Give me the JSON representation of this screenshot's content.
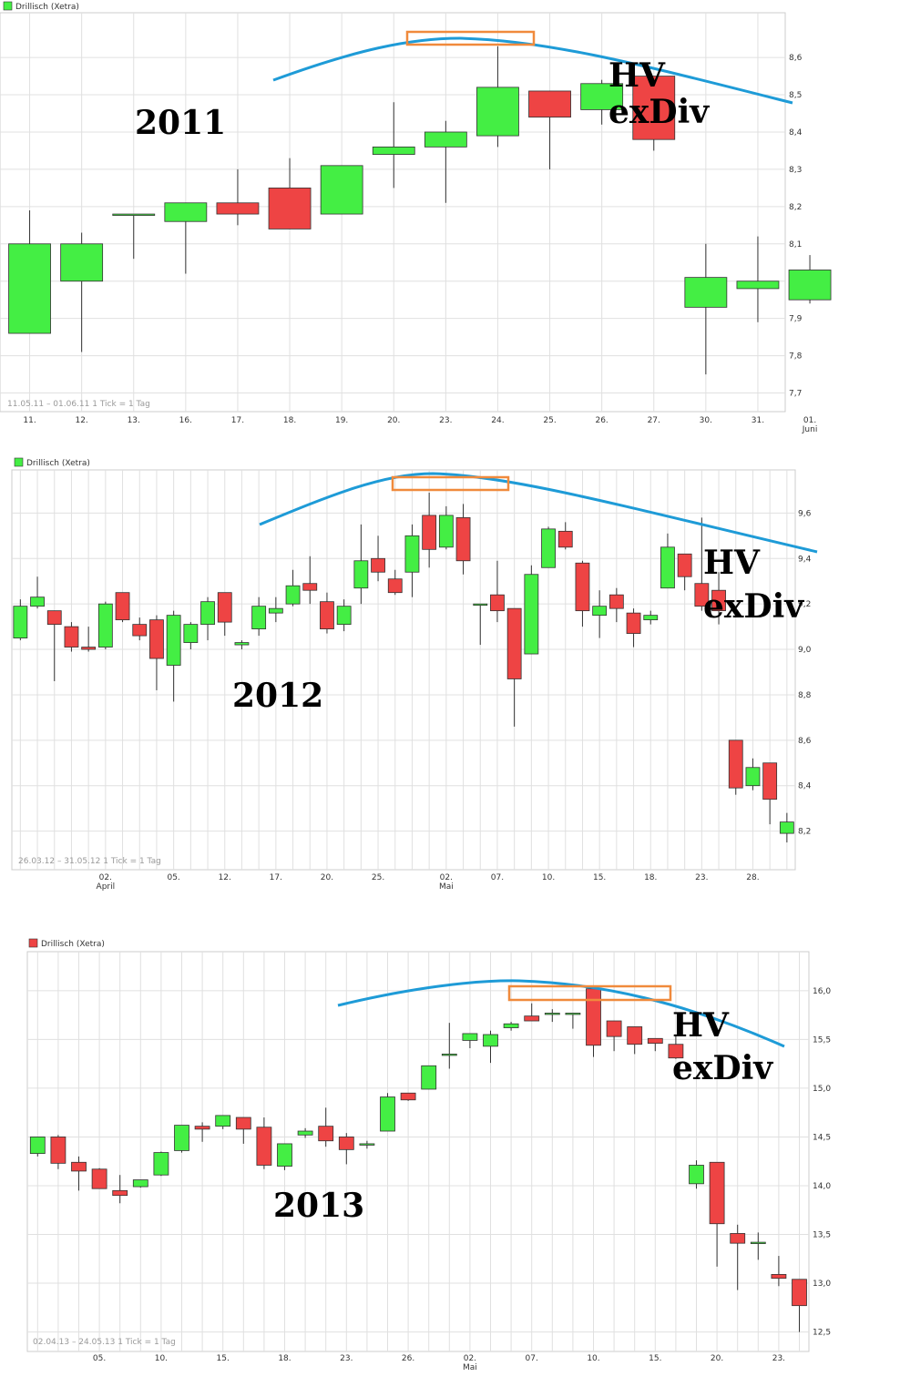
{
  "colors": {
    "up": "#44ee44",
    "down": "#ee4444",
    "trend": "#1e9bd7",
    "highlight": "#f08a3c",
    "grid": "#e0e0e0"
  },
  "chart_data": [
    {
      "type": "candlestick",
      "legend": "Drillisch (Xetra)",
      "legend_color": "#44ee44",
      "info": "11.05.11 – 01.06.11   1 Tick = 1 Tag",
      "year_label": "2011",
      "annotation": [
        "HV",
        "exDiv"
      ],
      "ylim": [
        7.65,
        8.72
      ],
      "yticks": [
        "8,6",
        "8,5",
        "8,4",
        "8,3",
        "8,2",
        "8,1",
        "8,0",
        "7,9",
        "7,8",
        "7,7"
      ],
      "ytick_values": [
        8.6,
        8.5,
        8.4,
        8.3,
        8.2,
        8.1,
        8.0,
        7.9,
        7.8,
        7.7
      ],
      "xticks": [
        "11.",
        "12.",
        "13.",
        "16.",
        "17.",
        "18.",
        "19.",
        "20.",
        "23.",
        "24.",
        "25.",
        "26.",
        "27.",
        "30.",
        "31.",
        "01."
      ],
      "xsub": {
        "index": 15,
        "label": "Juni"
      },
      "candles": [
        {
          "o": 7.86,
          "h": 8.19,
          "l": 7.86,
          "c": 8.1
        },
        {
          "o": 8.0,
          "h": 8.13,
          "l": 7.81,
          "c": 8.1
        },
        {
          "o": 8.18,
          "h": 8.18,
          "l": 8.06,
          "c": 8.18
        },
        {
          "o": 8.16,
          "h": 8.21,
          "l": 8.02,
          "c": 8.21
        },
        {
          "o": 8.21,
          "h": 8.3,
          "l": 8.15,
          "c": 8.18
        },
        {
          "o": 8.25,
          "h": 8.33,
          "l": 8.14,
          "c": 8.14
        },
        {
          "o": 8.18,
          "h": 8.31,
          "l": 8.18,
          "c": 8.31
        },
        {
          "o": 8.34,
          "h": 8.48,
          "l": 8.25,
          "c": 8.36
        },
        {
          "o": 8.36,
          "h": 8.43,
          "l": 8.21,
          "c": 8.4
        },
        {
          "o": 8.39,
          "h": 8.63,
          "l": 8.36,
          "c": 8.52
        },
        {
          "o": 8.51,
          "h": 8.51,
          "l": 8.3,
          "c": 8.44
        },
        {
          "o": 8.46,
          "h": 8.54,
          "l": 8.42,
          "c": 8.53
        },
        {
          "o": 8.55,
          "h": 8.55,
          "l": 8.35,
          "c": 8.38
        },
        {
          "o": 7.93,
          "h": 8.1,
          "l": 7.75,
          "c": 8.01
        },
        {
          "o": 7.98,
          "h": 8.12,
          "l": 7.89,
          "c": 8.0
        },
        {
          "o": 7.95,
          "h": 8.07,
          "l": 7.94,
          "c": 8.03
        }
      ]
    },
    {
      "type": "candlestick",
      "legend": "Drillisch (Xetra)",
      "legend_color": "#44ee44",
      "info": "26.03.12 – 31.05.12   1 Tick = 1 Tag",
      "year_label": "2012",
      "annotation": [
        "HV",
        "exDiv"
      ],
      "ylim": [
        8.03,
        9.79
      ],
      "yticks": [
        "9,6",
        "9,4",
        "9,2",
        "9,0",
        "8,8",
        "8,6",
        "8,4",
        "8,2"
      ],
      "ytick_values": [
        9.6,
        9.4,
        9.2,
        9.0,
        8.8,
        8.6,
        8.4,
        8.2
      ],
      "xticks": [
        "02.",
        "05.",
        "12.",
        "17.",
        "20.",
        "25.",
        "02.",
        "07.",
        "10.",
        "15.",
        "18.",
        "23.",
        "28."
      ],
      "xtick_idx": [
        5,
        9,
        12,
        15,
        18,
        21,
        25,
        28,
        31,
        34,
        37,
        40,
        43
      ],
      "xsubs": [
        {
          "index": 0,
          "label": "April"
        },
        {
          "index": 6,
          "label": "Mai"
        }
      ],
      "candles": [
        {
          "o": 9.05,
          "h": 9.22,
          "l": 9.04,
          "c": 9.19
        },
        {
          "o": 9.19,
          "h": 9.32,
          "l": 9.18,
          "c": 9.23
        },
        {
          "o": 9.17,
          "h": 9.17,
          "l": 8.86,
          "c": 9.11
        },
        {
          "o": 9.1,
          "h": 9.12,
          "l": 8.99,
          "c": 9.01
        },
        {
          "o": 9.01,
          "h": 9.1,
          "l": 8.99,
          "c": 9.0
        },
        {
          "o": 9.01,
          "h": 9.21,
          "l": 9.0,
          "c": 9.2
        },
        {
          "o": 9.25,
          "h": 9.25,
          "l": 9.12,
          "c": 9.13
        },
        {
          "o": 9.11,
          "h": 9.14,
          "l": 9.04,
          "c": 9.06
        },
        {
          "o": 9.13,
          "h": 9.15,
          "l": 8.82,
          "c": 8.96
        },
        {
          "o": 8.93,
          "h": 9.17,
          "l": 8.77,
          "c": 9.15
        },
        {
          "o": 9.03,
          "h": 9.12,
          "l": 9.0,
          "c": 9.11
        },
        {
          "o": 9.11,
          "h": 9.23,
          "l": 9.04,
          "c": 9.21
        },
        {
          "o": 9.25,
          "h": 9.25,
          "l": 9.06,
          "c": 9.12
        },
        {
          "o": 9.02,
          "h": 9.04,
          "l": 9.0,
          "c": 9.03
        },
        {
          "o": 9.09,
          "h": 9.23,
          "l": 9.06,
          "c": 9.19
        },
        {
          "o": 9.16,
          "h": 9.23,
          "l": 9.12,
          "c": 9.18
        },
        {
          "o": 9.2,
          "h": 9.35,
          "l": 9.19,
          "c": 9.28
        },
        {
          "o": 9.29,
          "h": 9.41,
          "l": 9.2,
          "c": 9.26
        },
        {
          "o": 9.21,
          "h": 9.25,
          "l": 9.07,
          "c": 9.09
        },
        {
          "o": 9.11,
          "h": 9.22,
          "l": 9.08,
          "c": 9.19
        },
        {
          "o": 9.27,
          "h": 9.55,
          "l": 9.2,
          "c": 9.39
        },
        {
          "o": 9.4,
          "h": 9.5,
          "l": 9.3,
          "c": 9.34
        },
        {
          "o": 9.31,
          "h": 9.35,
          "l": 9.24,
          "c": 9.25
        },
        {
          "o": 9.34,
          "h": 9.55,
          "l": 9.23,
          "c": 9.5
        },
        {
          "o": 9.59,
          "h": 9.69,
          "l": 9.36,
          "c": 9.44
        },
        {
          "o": 9.45,
          "h": 9.63,
          "l": 9.44,
          "c": 9.59
        },
        {
          "o": 9.58,
          "h": 9.64,
          "l": 9.33,
          "c": 9.39
        },
        {
          "o": 9.2,
          "h": 9.2,
          "l": 9.02,
          "c": 9.2
        },
        {
          "o": 9.24,
          "h": 9.39,
          "l": 9.12,
          "c": 9.17
        },
        {
          "o": 9.18,
          "h": 9.18,
          "l": 8.66,
          "c": 8.87
        },
        {
          "o": 8.98,
          "h": 9.37,
          "l": 8.98,
          "c": 9.33
        },
        {
          "o": 9.36,
          "h": 9.54,
          "l": 9.36,
          "c": 9.53
        },
        {
          "o": 9.52,
          "h": 9.56,
          "l": 9.44,
          "c": 9.45
        },
        {
          "o": 9.38,
          "h": 9.39,
          "l": 9.1,
          "c": 9.17
        },
        {
          "o": 9.15,
          "h": 9.26,
          "l": 9.05,
          "c": 9.19
        },
        {
          "o": 9.24,
          "h": 9.27,
          "l": 9.12,
          "c": 9.18
        },
        {
          "o": 9.16,
          "h": 9.18,
          "l": 9.01,
          "c": 9.07
        },
        {
          "o": 9.13,
          "h": 9.17,
          "l": 9.11,
          "c": 9.15
        },
        {
          "o": 9.27,
          "h": 9.51,
          "l": 9.27,
          "c": 9.45
        },
        {
          "o": 9.42,
          "h": 9.42,
          "l": 9.26,
          "c": 9.32
        },
        {
          "o": 9.29,
          "h": 9.58,
          "l": 9.17,
          "c": 9.19
        },
        {
          "o": 9.26,
          "h": 9.34,
          "l": 9.11,
          "c": 9.17
        },
        {
          "o": 8.6,
          "h": 8.6,
          "l": 8.36,
          "c": 8.39
        },
        {
          "o": 8.4,
          "h": 8.52,
          "l": 8.38,
          "c": 8.48
        },
        {
          "o": 8.5,
          "h": 8.5,
          "l": 8.23,
          "c": 8.34
        },
        {
          "o": 8.19,
          "h": 8.28,
          "l": 8.15,
          "c": 8.24
        }
      ]
    },
    {
      "type": "candlestick",
      "legend": "Drillisch (Xetra)",
      "legend_color": "#ee4444",
      "info": "02.04.13 – 24.05.13   1 Tick = 1 Tag",
      "year_label": "2013",
      "annotation": [
        "HV",
        "exDiv"
      ],
      "ylim": [
        12.3,
        16.4
      ],
      "yticks": [
        "16,0",
        "15,5",
        "15,0",
        "14,5",
        "14,0",
        "13,5",
        "13,0",
        "12,5"
      ],
      "ytick_values": [
        16.0,
        15.5,
        15.0,
        14.5,
        14.0,
        13.5,
        13.0,
        12.5
      ],
      "xticks": [
        "05.",
        "10.",
        "15.",
        "18.",
        "23.",
        "26.",
        "02.",
        "07.",
        "10.",
        "15.",
        "20.",
        "23."
      ],
      "xtick_idx": [
        3,
        6,
        9,
        12,
        15,
        18,
        21,
        24,
        27,
        30,
        33,
        36
      ],
      "xsubs": [
        {
          "index": 6,
          "label": "Mai"
        }
      ],
      "candles": [
        {
          "o": 14.33,
          "h": 14.5,
          "l": 14.3,
          "c": 14.5
        },
        {
          "o": 14.5,
          "h": 14.52,
          "l": 14.17,
          "c": 14.23
        },
        {
          "o": 14.24,
          "h": 14.3,
          "l": 13.95,
          "c": 14.15
        },
        {
          "o": 14.17,
          "h": 14.18,
          "l": 13.97,
          "c": 13.97
        },
        {
          "o": 13.95,
          "h": 14.11,
          "l": 13.82,
          "c": 13.9
        },
        {
          "o": 13.99,
          "h": 14.06,
          "l": 13.98,
          "c": 14.06
        },
        {
          "o": 14.11,
          "h": 14.35,
          "l": 14.1,
          "c": 14.34
        },
        {
          "o": 14.36,
          "h": 14.62,
          "l": 14.34,
          "c": 14.62
        },
        {
          "o": 14.61,
          "h": 14.65,
          "l": 14.45,
          "c": 14.58
        },
        {
          "o": 14.61,
          "h": 14.72,
          "l": 14.58,
          "c": 14.72
        },
        {
          "o": 14.7,
          "h": 14.7,
          "l": 14.43,
          "c": 14.58
        },
        {
          "o": 14.6,
          "h": 14.7,
          "l": 14.17,
          "c": 14.21
        },
        {
          "o": 14.2,
          "h": 14.43,
          "l": 14.16,
          "c": 14.43
        },
        {
          "o": 14.52,
          "h": 14.59,
          "l": 14.49,
          "c": 14.56
        },
        {
          "o": 14.61,
          "h": 14.8,
          "l": 14.4,
          "c": 14.46
        },
        {
          "o": 14.5,
          "h": 14.54,
          "l": 14.22,
          "c": 14.37
        },
        {
          "o": 14.43,
          "h": 14.46,
          "l": 14.38,
          "c": 14.43
        },
        {
          "o": 14.56,
          "h": 14.95,
          "l": 14.56,
          "c": 14.91
        },
        {
          "o": 14.95,
          "h": 14.95,
          "l": 14.87,
          "c": 14.88
        },
        {
          "o": 14.99,
          "h": 15.23,
          "l": 14.99,
          "c": 15.23
        },
        {
          "o": 15.35,
          "h": 15.67,
          "l": 15.2,
          "c": 15.35
        },
        {
          "o": 15.49,
          "h": 15.56,
          "l": 15.41,
          "c": 15.56
        },
        {
          "o": 15.43,
          "h": 15.59,
          "l": 15.26,
          "c": 15.55
        },
        {
          "o": 15.62,
          "h": 15.68,
          "l": 15.59,
          "c": 15.66
        },
        {
          "o": 15.74,
          "h": 15.87,
          "l": 15.7,
          "c": 15.69
        },
        {
          "o": 15.77,
          "h": 15.81,
          "l": 15.68,
          "c": 15.77
        },
        {
          "o": 15.77,
          "h": 15.77,
          "l": 15.61,
          "c": 15.77
        },
        {
          "o": 16.02,
          "h": 16.02,
          "l": 15.32,
          "c": 15.44
        },
        {
          "o": 15.69,
          "h": 15.69,
          "l": 15.38,
          "c": 15.53
        },
        {
          "o": 15.63,
          "h": 15.63,
          "l": 15.35,
          "c": 15.45
        },
        {
          "o": 15.51,
          "h": 15.51,
          "l": 15.38,
          "c": 15.46
        },
        {
          "o": 15.45,
          "h": 15.55,
          "l": 15.3,
          "c": 15.31
        },
        {
          "o": 14.02,
          "h": 14.26,
          "l": 13.97,
          "c": 14.21
        },
        {
          "o": 14.24,
          "h": 14.24,
          "l": 13.17,
          "c": 13.61
        },
        {
          "o": 13.51,
          "h": 13.6,
          "l": 12.93,
          "c": 13.41
        },
        {
          "o": 13.42,
          "h": 13.52,
          "l": 13.24,
          "c": 13.42
        },
        {
          "o": 13.09,
          "h": 13.28,
          "l": 12.97,
          "c": 13.05
        },
        {
          "o": 13.04,
          "h": 13.04,
          "l": 12.5,
          "c": 12.77
        }
      ]
    }
  ]
}
